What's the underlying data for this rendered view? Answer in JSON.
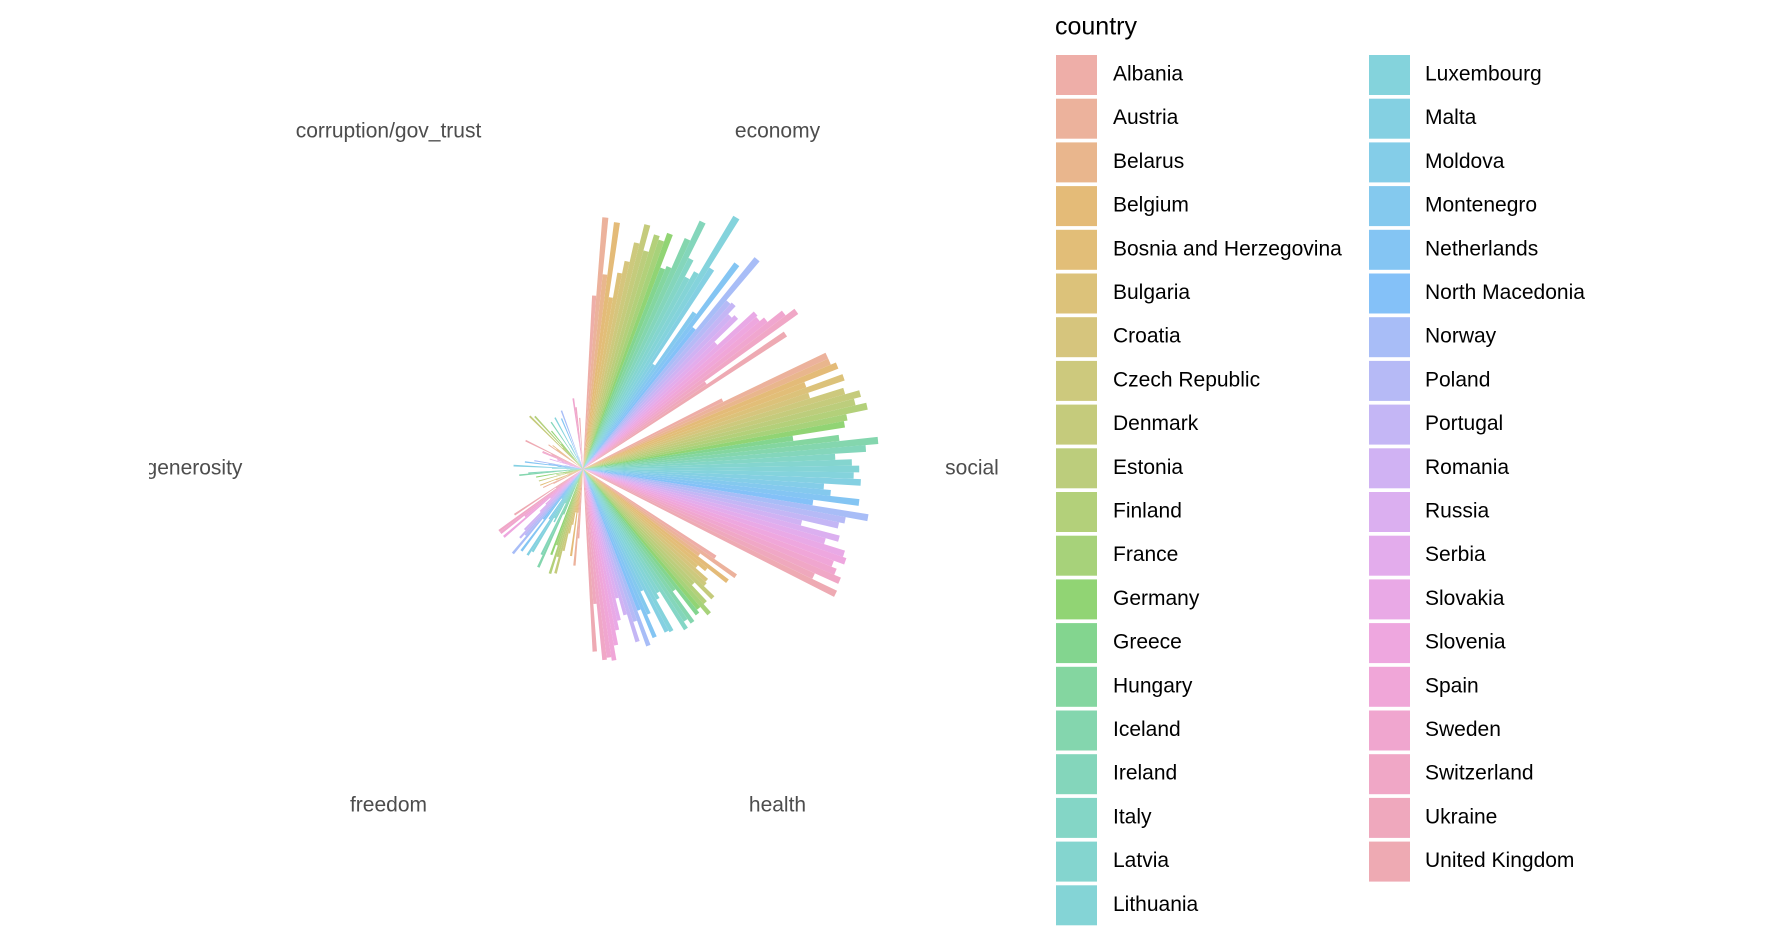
{
  "chart_data": {
    "type": "polar_bar",
    "categories": [
      "economy",
      "social",
      "health",
      "freedom",
      "generosity",
      "corruption/gov_trust"
    ],
    "legend_title": "country",
    "ylim": [
      0,
      1.7
    ],
    "series": [
      {
        "name": "Albania",
        "color": "#eeaea8",
        "values": [
          0.95,
          0.85,
          0.87,
          0.38,
          0.18,
          0.03
        ]
      },
      {
        "name": "Austria",
        "color": "#ecb29c",
        "values": [
          1.38,
          1.47,
          1.02,
          0.53,
          0.24,
          0.23
        ]
      },
      {
        "name": "Belarus",
        "color": "#e9b68d",
        "values": [
          1.07,
          1.47,
          0.79,
          0.24,
          0.09,
          0.18
        ]
      },
      {
        "name": "Belgium",
        "color": "#e4bb78",
        "values": [
          1.36,
          1.5,
          1.0,
          0.48,
          0.16,
          0.21
        ]
      },
      {
        "name": "Bosnia and Herzegovina",
        "color": "#e2be78",
        "values": [
          0.95,
          1.3,
          0.87,
          0.24,
          0.25,
          0.01
        ]
      },
      {
        "name": "Bulgaria",
        "color": "#dcc27a",
        "values": [
          1.09,
          1.51,
          0.82,
          0.31,
          0.08,
          0.01
        ]
      },
      {
        "name": "Croatia",
        "color": "#d6c57d",
        "values": [
          1.16,
          1.3,
          0.91,
          0.36,
          0.09,
          0.02
        ]
      },
      {
        "name": "Czech Republic",
        "color": "#cdc97d",
        "values": [
          1.27,
          1.49,
          0.92,
          0.46,
          0.05,
          0.04
        ]
      },
      {
        "name": "Denmark",
        "color": "#c5cb7c",
        "values": [
          1.38,
          1.57,
          1.0,
          0.59,
          0.25,
          0.41
        ]
      },
      {
        "name": "Estonia",
        "color": "#bccd7c",
        "values": [
          1.24,
          1.53,
          0.87,
          0.5,
          0.1,
          0.16
        ]
      },
      {
        "name": "Finland",
        "color": "#b3d07a",
        "values": [
          1.34,
          1.59,
          0.99,
          0.6,
          0.15,
          0.39
        ]
      },
      {
        "name": "France",
        "color": "#a7d27a",
        "values": [
          1.32,
          1.47,
          1.05,
          0.44,
          0.11,
          0.18
        ]
      },
      {
        "name": "Germany",
        "color": "#91d474",
        "values": [
          1.37,
          1.45,
          0.99,
          0.5,
          0.26,
          0.27
        ]
      },
      {
        "name": "Greece",
        "color": "#83d58f",
        "values": [
          1.18,
          1.16,
          1.01,
          0.08,
          0.0,
          0.03
        ]
      },
      {
        "name": "Hungary",
        "color": "#84d6a0",
        "values": [
          1.2,
          1.41,
          0.83,
          0.27,
          0.08,
          0.02
        ]
      },
      {
        "name": "Iceland",
        "color": "#84d6ae",
        "values": [
          1.38,
          1.62,
          1.03,
          0.59,
          0.35,
          0.12
        ]
      },
      {
        "name": "Ireland",
        "color": "#84d6bb",
        "values": [
          1.5,
          1.55,
          1.0,
          0.52,
          0.3,
          0.31
        ]
      },
      {
        "name": "Italy",
        "color": "#84d6c6",
        "values": [
          1.29,
          1.38,
          1.04,
          0.21,
          0.09,
          0.03
        ]
      },
      {
        "name": "Latvia",
        "color": "#84d5cf",
        "values": [
          1.19,
          1.47,
          0.79,
          0.33,
          0.07,
          0.05
        ]
      },
      {
        "name": "Lithuania",
        "color": "#84d4d6",
        "values": [
          1.24,
          1.51,
          0.82,
          0.31,
          0.04,
          0.03
        ]
      },
      {
        "name": "Luxembourg",
        "color": "#84d3dc",
        "values": [
          1.61,
          1.48,
          1.01,
          0.53,
          0.17,
          0.32
        ]
      },
      {
        "name": "Malta",
        "color": "#84d0e2",
        "values": [
          1.3,
          1.52,
          1.0,
          0.56,
          0.38,
          0.15
        ]
      },
      {
        "name": "Moldova",
        "color": "#84cde8",
        "values": [
          0.69,
          1.32,
          0.74,
          0.33,
          0.1,
          0.03
        ]
      },
      {
        "name": "Montenegro",
        "color": "#84c9ee",
        "values": [
          1.05,
          1.36,
          0.87,
          0.2,
          0.14,
          0.08
        ]
      },
      {
        "name": "Netherlands",
        "color": "#84c5f3",
        "values": [
          1.4,
          1.52,
          1.0,
          0.56,
          0.32,
          0.3
        ]
      },
      {
        "name": "North Macedonia",
        "color": "#84c1f8",
        "values": [
          0.98,
          1.27,
          0.83,
          0.35,
          0.19,
          0.05
        ]
      },
      {
        "name": "Norway",
        "color": "#a8bdf7",
        "values": [
          1.49,
          1.58,
          1.03,
          0.6,
          0.27,
          0.34
        ]
      },
      {
        "name": "Poland",
        "color": "#b6baf6",
        "values": [
          1.21,
          1.46,
          0.88,
          0.48,
          0.1,
          0.07
        ]
      },
      {
        "name": "Portugal",
        "color": "#c4b6f5",
        "values": [
          1.22,
          1.43,
          0.99,
          0.51,
          0.03,
          0.03
        ]
      },
      {
        "name": "Romania",
        "color": "#d0b2f3",
        "values": [
          1.16,
          1.23,
          0.83,
          0.46,
          0.05,
          0.01
        ]
      },
      {
        "name": "Russia",
        "color": "#dbaff0",
        "values": [
          1.18,
          1.45,
          0.73,
          0.33,
          0.08,
          0.03
        ]
      },
      {
        "name": "Serbia",
        "color": "#e3acec",
        "values": [
          1.0,
          1.38,
          0.85,
          0.28,
          0.19,
          0.04
        ]
      },
      {
        "name": "Slovakia",
        "color": "#e9a9e6",
        "values": [
          1.27,
          1.5,
          0.9,
          0.24,
          0.12,
          0.01
        ]
      },
      {
        "name": "Slovenia",
        "color": "#eea7df",
        "values": [
          1.26,
          1.52,
          0.98,
          0.57,
          0.15,
          0.05
        ]
      },
      {
        "name": "Spain",
        "color": "#f0a6d8",
        "values": [
          1.29,
          1.46,
          1.06,
          0.41,
          0.15,
          0.07
        ]
      },
      {
        "name": "Sweden",
        "color": "#f0a6cf",
        "values": [
          1.39,
          1.49,
          1.04,
          0.57,
          0.24,
          0.39
        ]
      },
      {
        "name": "Switzerland",
        "color": "#f0a7c6",
        "values": [
          1.45,
          1.53,
          1.05,
          0.57,
          0.24,
          0.34
        ]
      },
      {
        "name": "Ukraine",
        "color": "#efa8bd",
        "values": [
          0.82,
          1.39,
          0.74,
          0.18,
          0.19,
          0.01
        ]
      },
      {
        "name": "United Kingdom",
        "color": "#eeaab3",
        "values": [
          1.33,
          1.54,
          1.0,
          0.45,
          0.35,
          0.28
        ]
      }
    ]
  }
}
